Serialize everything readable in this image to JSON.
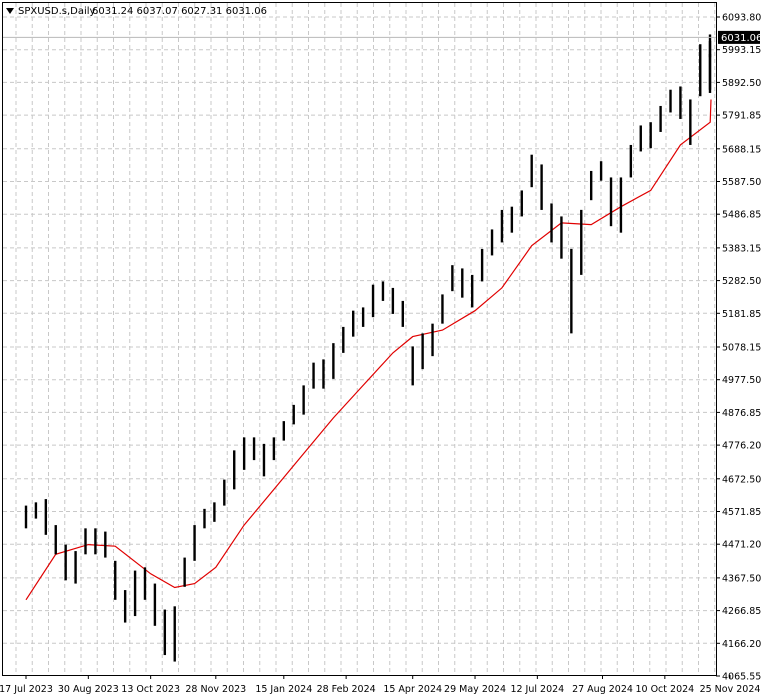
{
  "header": {
    "symbol": "SPXUSD.s,Daily",
    "ohlc": "6031.24 6037.07 6027.31 6031.06"
  },
  "chart_data": {
    "type": "line",
    "title": "",
    "xlabel": "",
    "ylabel": "",
    "ylim": [
      4065.55,
      6093.8
    ],
    "grid": true,
    "y_ticks": [
      "6093.80",
      "5993.15",
      "5892.50",
      "5791.85",
      "5688.15",
      "5587.50",
      "5486.85",
      "5383.15",
      "5282.50",
      "5181.85",
      "5078.15",
      "4977.50",
      "4876.85",
      "4776.20",
      "4672.50",
      "4571.85",
      "4471.20",
      "4367.50",
      "4266.85",
      "4166.20",
      "4065.55"
    ],
    "x_ticks": [
      {
        "date": "2023-07-17",
        "label": "17 Jul 2023"
      },
      {
        "date": "2023-08-30",
        "label": "30 Aug 2023"
      },
      {
        "date": "2023-10-13",
        "label": "13 Oct 2023"
      },
      {
        "date": "2023-11-28",
        "label": "28 Nov 2023"
      },
      {
        "date": "2024-01-15",
        "label": "15 Jan 2024"
      },
      {
        "date": "2024-02-28",
        "label": "28 Feb 2024"
      },
      {
        "date": "2024-04-15",
        "label": "15 Apr 2024"
      },
      {
        "date": "2024-05-29",
        "label": "29 May 2024"
      },
      {
        "date": "2024-07-12",
        "label": "12 Jul 2024"
      },
      {
        "date": "2024-08-27",
        "label": "27 Aug 2024"
      },
      {
        "date": "2024-10-10",
        "label": "10 Oct 2024"
      },
      {
        "date": "2024-11-25",
        "label": "25 Nov 2024"
      }
    ],
    "current_price": "6031.06",
    "series": [
      {
        "style": "bars",
        "color": "#000000",
        "points": [
          [
            "2023-07-17",
            4520,
            4590
          ],
          [
            "2023-07-24",
            4550,
            4600
          ],
          [
            "2023-07-31",
            4500,
            4610
          ],
          [
            "2023-08-07",
            4440,
            4530
          ],
          [
            "2023-08-14",
            4360,
            4470
          ],
          [
            "2023-08-21",
            4350,
            4450
          ],
          [
            "2023-08-28",
            4440,
            4520
          ],
          [
            "2023-09-04",
            4440,
            4520
          ],
          [
            "2023-09-11",
            4430,
            4510
          ],
          [
            "2023-09-18",
            4300,
            4420
          ],
          [
            "2023-09-25",
            4230,
            4330
          ],
          [
            "2023-10-02",
            4250,
            4390
          ],
          [
            "2023-10-09",
            4300,
            4400
          ],
          [
            "2023-10-16",
            4220,
            4350
          ],
          [
            "2023-10-23",
            4130,
            4270
          ],
          [
            "2023-10-30",
            4110,
            4280
          ],
          [
            "2023-11-06",
            4340,
            4430
          ],
          [
            "2023-11-13",
            4420,
            4530
          ],
          [
            "2023-11-20",
            4520,
            4580
          ],
          [
            "2023-11-27",
            4540,
            4600
          ],
          [
            "2023-12-04",
            4590,
            4670
          ],
          [
            "2023-12-11",
            4640,
            4760
          ],
          [
            "2023-12-18",
            4700,
            4800
          ],
          [
            "2023-12-25",
            4730,
            4800
          ],
          [
            "2024-01-01",
            4680,
            4780
          ],
          [
            "2024-01-08",
            4730,
            4800
          ],
          [
            "2024-01-15",
            4790,
            4850
          ],
          [
            "2024-01-22",
            4840,
            4900
          ],
          [
            "2024-01-29",
            4870,
            4960
          ],
          [
            "2024-02-05",
            4950,
            5030
          ],
          [
            "2024-02-12",
            4950,
            5040
          ],
          [
            "2024-02-19",
            4980,
            5090
          ],
          [
            "2024-02-26",
            5060,
            5140
          ],
          [
            "2024-03-04",
            5110,
            5190
          ],
          [
            "2024-03-11",
            5140,
            5200
          ],
          [
            "2024-03-18",
            5170,
            5270
          ],
          [
            "2024-03-25",
            5220,
            5280
          ],
          [
            "2024-04-01",
            5180,
            5260
          ],
          [
            "2024-04-08",
            5140,
            5220
          ],
          [
            "2024-04-15",
            4960,
            5080
          ],
          [
            "2024-04-22",
            5010,
            5120
          ],
          [
            "2024-04-29",
            5050,
            5150
          ],
          [
            "2024-05-06",
            5150,
            5240
          ],
          [
            "2024-05-13",
            5250,
            5330
          ],
          [
            "2024-05-20",
            5230,
            5320
          ],
          [
            "2024-05-27",
            5200,
            5300
          ],
          [
            "2024-06-03",
            5280,
            5380
          ],
          [
            "2024-06-10",
            5360,
            5440
          ],
          [
            "2024-06-17",
            5400,
            5500
          ],
          [
            "2024-06-24",
            5430,
            5510
          ],
          [
            "2024-07-01",
            5480,
            5560
          ],
          [
            "2024-07-08",
            5570,
            5670
          ],
          [
            "2024-07-15",
            5500,
            5640
          ],
          [
            "2024-07-22",
            5400,
            5520
          ],
          [
            "2024-07-29",
            5350,
            5480
          ],
          [
            "2024-08-05",
            5120,
            5380
          ],
          [
            "2024-08-12",
            5300,
            5500
          ],
          [
            "2024-08-19",
            5530,
            5620
          ],
          [
            "2024-08-26",
            5590,
            5650
          ],
          [
            "2024-09-02",
            5450,
            5600
          ],
          [
            "2024-09-09",
            5430,
            5600
          ],
          [
            "2024-09-16",
            5600,
            5700
          ],
          [
            "2024-09-23",
            5680,
            5760
          ],
          [
            "2024-09-30",
            5690,
            5770
          ],
          [
            "2024-10-07",
            5740,
            5820
          ],
          [
            "2024-10-14",
            5800,
            5870
          ],
          [
            "2024-10-21",
            5780,
            5880
          ],
          [
            "2024-10-28",
            5700,
            5840
          ],
          [
            "2024-11-04",
            5850,
            6010
          ],
          [
            "2024-11-11",
            5870,
            6020
          ],
          [
            "2024-11-18",
            5860,
            5980
          ],
          [
            "2024-11-25",
            5970,
            6040
          ]
        ]
      },
      {
        "style": "line",
        "color": "#e00000",
        "points": [
          [
            "2023-07-17",
            4300
          ],
          [
            "2023-08-07",
            4440
          ],
          [
            "2023-08-30",
            4470
          ],
          [
            "2023-09-18",
            4465
          ],
          [
            "2023-10-13",
            4380
          ],
          [
            "2023-10-30",
            4338
          ],
          [
            "2023-11-13",
            4350
          ],
          [
            "2023-11-28",
            4400
          ],
          [
            "2023-12-18",
            4530
          ],
          [
            "2024-01-08",
            4640
          ],
          [
            "2024-01-29",
            4750
          ],
          [
            "2024-02-19",
            4860
          ],
          [
            "2024-03-11",
            4960
          ],
          [
            "2024-04-01",
            5060
          ],
          [
            "2024-04-15",
            5110
          ],
          [
            "2024-05-06",
            5130
          ],
          [
            "2024-05-29",
            5190
          ],
          [
            "2024-06-17",
            5260
          ],
          [
            "2024-07-08",
            5390
          ],
          [
            "2024-07-29",
            5460
          ],
          [
            "2024-08-19",
            5455
          ],
          [
            "2024-09-09",
            5510
          ],
          [
            "2024-09-30",
            5560
          ],
          [
            "2024-10-21",
            5700
          ],
          [
            "2024-11-11",
            5770
          ],
          [
            "2024-11-25",
            5840
          ]
        ]
      }
    ]
  }
}
